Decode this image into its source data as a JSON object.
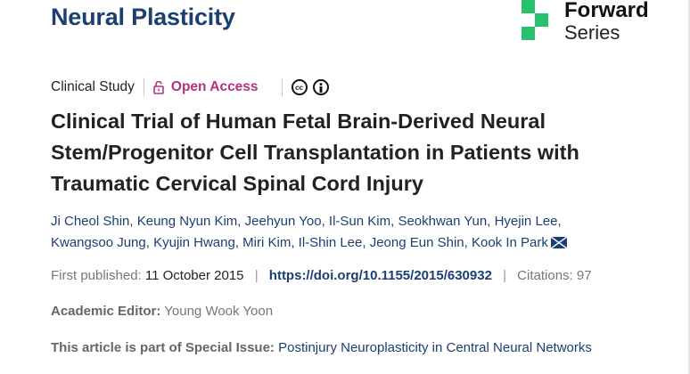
{
  "header": {
    "journal": "Neural Plasticity",
    "logo": {
      "line1": "Forward",
      "line2": "Series",
      "color": "#27c26b"
    }
  },
  "meta": {
    "article_type": "Clinical Study",
    "access": "Open Access",
    "license_icons": [
      "cc-icon",
      "attribution-icon"
    ]
  },
  "article": {
    "title": "Clinical Trial of Human Fetal Brain-Derived Neural Stem/Progenitor Cell Transplantation in Patients with Traumatic Cervical Spinal Cord Injury",
    "authors": [
      "Ji Cheol Shin",
      "Keung Nyun Kim",
      "Jeehyun Yoo",
      "Il-Sun Kim",
      "Seokhwan Yun",
      "Hyejin Lee",
      "Kwangsoo Jung",
      "Kyujin Hwang",
      "Miri Kim",
      "Il-Shin Lee",
      "Jeong Eun Shin",
      "Kook In Park"
    ],
    "published_label": "First published:",
    "published_date": "11 October 2015",
    "doi": "https://doi.org/10.1155/2015/630932",
    "citations_label": "Citations:",
    "citations": "97",
    "editor_label": "Academic Editor:",
    "editor": "Young Wook Yoon",
    "special_label": "This article is part of Special Issue:",
    "special_issue": "Postinjury Neuroplasticity in Central Neural Networks"
  }
}
